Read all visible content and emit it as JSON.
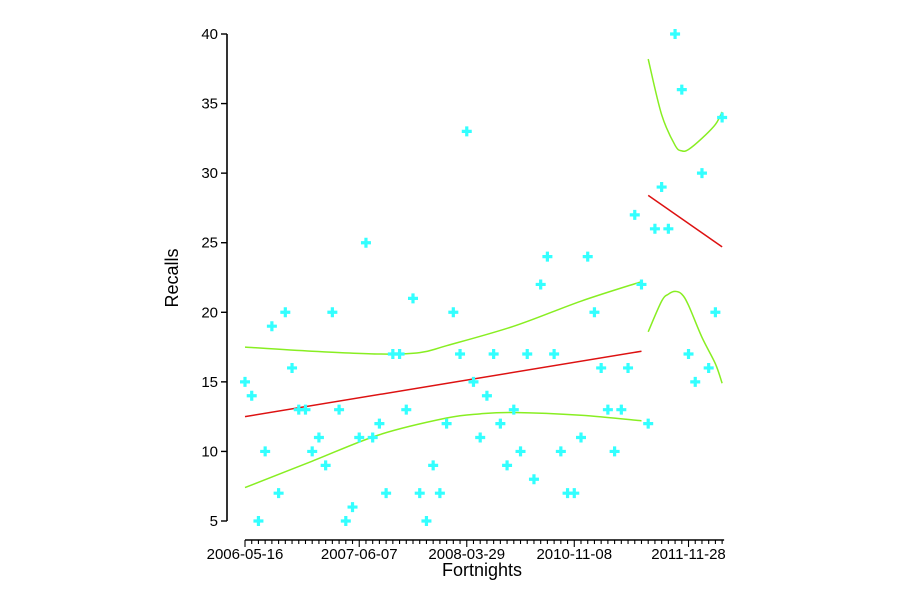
{
  "chart_data": {
    "type": "scatter",
    "title": "",
    "xlabel": "Fortnights",
    "ylabel": "Recalls",
    "ylim": [
      5,
      40
    ],
    "yticks": [
      5,
      10,
      15,
      20,
      25,
      30,
      35,
      40
    ],
    "xticks": [
      {
        "index": 0,
        "label": "2006-05-16"
      },
      {
        "index": 17,
        "label": "2007-06-07"
      },
      {
        "index": 33,
        "label": "2008-03-29"
      },
      {
        "index": 49,
        "label": "2010-11-08"
      },
      {
        "index": 66,
        "label": "2011-11-28"
      }
    ],
    "xlim": [
      0,
      70
    ],
    "grid": false,
    "legend": "none",
    "colors": {
      "points": "#33ffff",
      "fit": "#dd1111",
      "interval": "#88ee22",
      "axis": "#000000"
    },
    "points": [
      [
        0,
        15
      ],
      [
        1,
        14
      ],
      [
        2,
        5
      ],
      [
        3,
        10
      ],
      [
        4,
        19
      ],
      [
        5,
        7
      ],
      [
        6,
        20
      ],
      [
        7,
        16
      ],
      [
        8,
        13
      ],
      [
        9,
        13
      ],
      [
        10,
        10
      ],
      [
        11,
        11
      ],
      [
        12,
        9
      ],
      [
        13,
        20
      ],
      [
        14,
        13
      ],
      [
        15,
        5
      ],
      [
        16,
        6
      ],
      [
        17,
        11
      ],
      [
        18,
        25
      ],
      [
        19,
        11
      ],
      [
        20,
        12
      ],
      [
        21,
        7
      ],
      [
        22,
        17
      ],
      [
        23,
        17
      ],
      [
        24,
        13
      ],
      [
        25,
        21
      ],
      [
        26,
        7
      ],
      [
        27,
        5
      ],
      [
        28,
        9
      ],
      [
        29,
        7
      ],
      [
        30,
        12
      ],
      [
        31,
        20
      ],
      [
        32,
        17
      ],
      [
        33,
        33
      ],
      [
        34,
        15
      ],
      [
        35,
        11
      ],
      [
        36,
        14
      ],
      [
        37,
        17
      ],
      [
        38,
        12
      ],
      [
        39,
        9
      ],
      [
        40,
        13
      ],
      [
        41,
        10
      ],
      [
        42,
        17
      ],
      [
        43,
        8
      ],
      [
        44,
        22
      ],
      [
        45,
        24
      ],
      [
        46,
        17
      ],
      [
        47,
        10
      ],
      [
        48,
        7
      ],
      [
        49,
        7
      ],
      [
        50,
        11
      ],
      [
        51,
        24
      ],
      [
        52,
        20
      ],
      [
        53,
        16
      ],
      [
        54,
        13
      ],
      [
        55,
        10
      ],
      [
        56,
        13
      ],
      [
        57,
        16
      ],
      [
        58,
        27
      ],
      [
        59,
        22
      ],
      [
        60,
        12
      ],
      [
        61,
        26
      ],
      [
        62,
        29
      ],
      [
        63,
        26
      ],
      [
        64,
        40
      ],
      [
        65,
        36
      ],
      [
        66,
        17
      ],
      [
        67,
        15
      ],
      [
        68,
        30
      ],
      [
        69,
        16
      ],
      [
        70,
        20
      ],
      [
        71,
        34
      ]
    ],
    "series": [
      {
        "role": "fit",
        "x": [
          0,
          59
        ],
        "y": [
          12.5,
          17.2
        ]
      },
      {
        "role": "upper",
        "x": [
          0,
          10,
          20,
          26,
          30,
          40,
          50,
          59
        ],
        "y": [
          17.5,
          17.2,
          17.0,
          17.1,
          17.6,
          19.0,
          20.8,
          22.2
        ]
      },
      {
        "role": "lower",
        "x": [
          0,
          10,
          20,
          30,
          35,
          40,
          50,
          59
        ],
        "y": [
          7.4,
          9.3,
          11.2,
          12.4,
          12.7,
          12.8,
          12.6,
          12.2
        ]
      },
      {
        "role": "fit",
        "x": [
          60,
          71
        ],
        "y": [
          28.4,
          24.7
        ]
      },
      {
        "role": "upper",
        "x": [
          60,
          62,
          64,
          65,
          66,
          68,
          70,
          71
        ],
        "y": [
          38.2,
          34.2,
          32.0,
          31.6,
          31.7,
          32.5,
          33.5,
          34.4
        ]
      },
      {
        "role": "lower",
        "x": [
          60,
          62,
          63,
          64,
          65,
          66,
          68,
          70,
          71
        ],
        "y": [
          18.6,
          20.8,
          21.3,
          21.5,
          21.3,
          20.5,
          18.2,
          16.3,
          14.9
        ]
      }
    ]
  }
}
